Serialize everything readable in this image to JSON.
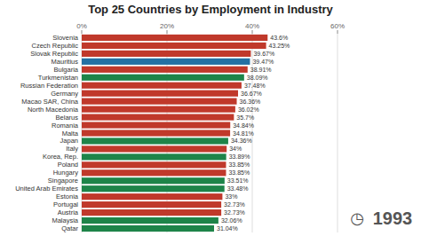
{
  "chart_data": {
    "type": "bar",
    "orientation": "horizontal",
    "title": "Top 25 Countries by Employment in Industry",
    "annotations": [
      "◷",
      "1993"
    ],
    "categories": [
      "Slovenia",
      "Czech Republic",
      "Slovak Republic",
      "Mauritius",
      "Bulgaria",
      "Turkmenistan",
      "Russian Federation",
      "Germany",
      "Macao SAR, China",
      "North Macedonia",
      "Belarus",
      "Romania",
      "Malta",
      "Japan",
      "Italy",
      "Korea, Rep.",
      "Poland",
      "Hungary",
      "Singapore",
      "United Arab Emirates",
      "Estonia",
      "Portugal",
      "Austria",
      "Malaysia",
      "Qatar"
    ],
    "values": [
      43.6,
      43.25,
      39.67,
      39.47,
      38.91,
      38.09,
      37.48,
      36.67,
      36.36,
      36.02,
      35.7,
      34.84,
      34.81,
      34.36,
      34.0,
      33.89,
      33.85,
      33.85,
      33.51,
      33.48,
      33.0,
      32.73,
      32.73,
      32.06,
      31.04
    ],
    "value_labels": [
      "43.6%",
      "43.25%",
      "39.67%",
      "39.47%",
      "38.91%",
      "38.09%",
      "37.48%",
      "36.67%",
      "36.36%",
      "36.02%",
      "35.7%",
      "34.84%",
      "34.81%",
      "34.36%",
      "34%",
      "33.89%",
      "33.85%",
      "33.85%",
      "33.51%",
      "33.48%",
      "33%",
      "32.73%",
      "32.73%",
      "32.06%",
      "31.04%"
    ],
    "data_labels": true,
    "colors": [
      "#c0392b",
      "#c0392b",
      "#c0392b",
      "#2471a3",
      "#c0392b",
      "#1e8449",
      "#c0392b",
      "#c0392b",
      "#c0392b",
      "#c0392b",
      "#c0392b",
      "#c0392b",
      "#c0392b",
      "#1e8449",
      "#c0392b",
      "#1e8449",
      "#c0392b",
      "#c0392b",
      "#1e8449",
      "#1e8449",
      "#c0392b",
      "#c0392b",
      "#c0392b",
      "#1e8449",
      "#1e8449"
    ],
    "xlim": [
      0,
      60
    ],
    "xticks": [
      {
        "value": 0,
        "label": "0%"
      },
      {
        "value": 20,
        "label": "20%"
      },
      {
        "value": 40,
        "label": "40%"
      },
      {
        "value": 60,
        "label": "60%"
      }
    ],
    "grid": true
  }
}
